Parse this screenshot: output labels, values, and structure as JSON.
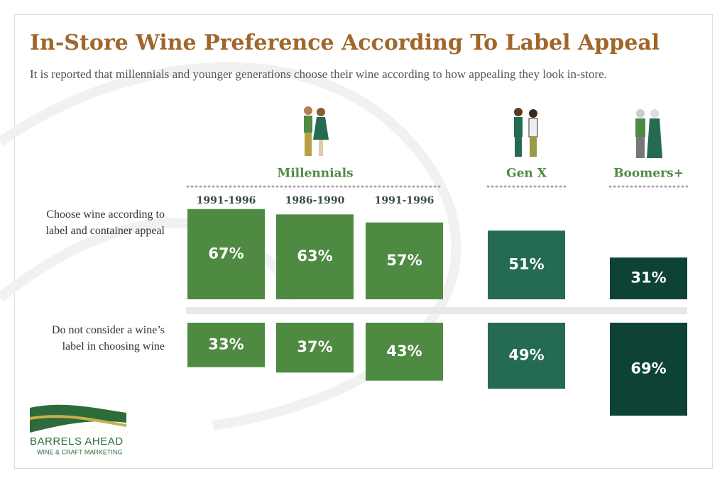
{
  "chart_data": {
    "type": "diverging-bar",
    "title": "In-Store Wine Preference According To Label Appeal",
    "subtitle": "It is reported that millennials and younger generations choose their wine according to how appealing they look in-store.",
    "groups": [
      "Millennials",
      "Gen X",
      "Boomers+"
    ],
    "categories": [
      "1991-1996",
      "1986-1990",
      "1991-1996",
      null,
      null
    ],
    "colors": [
      "#4f8a43",
      "#4f8a43",
      "#4f8a43",
      "#256b52",
      "#0e4237"
    ],
    "series": [
      {
        "name": "Choose wine according to label and container appeal",
        "values": [
          67,
          63,
          57,
          51,
          31
        ],
        "value_labels": [
          "67%",
          "63%",
          "57%",
          "51%",
          "31%"
        ]
      },
      {
        "name": "Do not consider a wine’s label in choosing wine",
        "values": [
          33,
          37,
          43,
          49,
          69
        ],
        "value_labels": [
          "33%",
          "37%",
          "43%",
          "49%",
          "69%"
        ]
      }
    ]
  },
  "logo": {
    "name": "BARRELS AHEAD",
    "tagline": "WINE & CRAFT MARKETING"
  }
}
